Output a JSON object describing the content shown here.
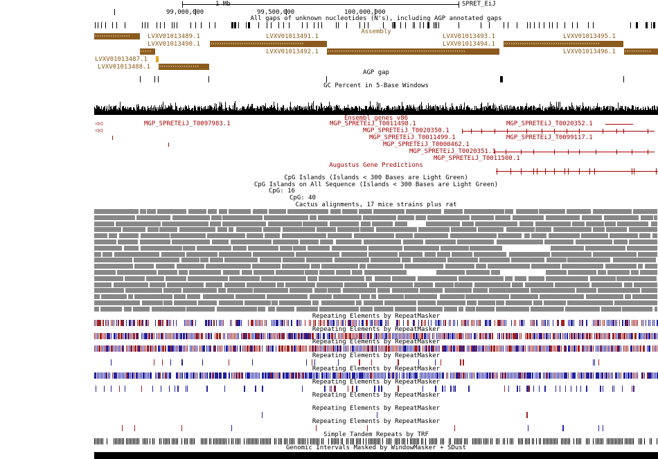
{
  "header": {
    "scale_label": "1 Mb",
    "assembly_name": "SPRET_EiJ",
    "ticks": [
      "99,000,000",
      "99,500,000",
      "100,000,000"
    ]
  },
  "tracks": {
    "gaps": {
      "title": "All gaps of unknown nucleotides (N's), including AGP annotated gaps"
    },
    "assembly": {
      "title": "Assembly",
      "items": [
        "LVXV01013489.1",
        "LVXV01013491.1",
        "LVXV01013493.1",
        "LVXV01013495.1",
        "LVXV01013490.1",
        "LVXV01013494.1",
        "LVXV01013492.1",
        "LVXV01013496.1",
        "LVXV01013487.1",
        "LVXV01013488.1"
      ],
      "color": "#8b5a1e"
    },
    "agp": {
      "title": "AGP gap"
    },
    "gc": {
      "title": "GC Percent in 5-Base Windows"
    },
    "ensembl": {
      "title": "Ensembl genes v86",
      "color": "#a00000",
      "genes": [
        "MGP_SPRETEiJ_T0097983.1",
        "MGP_SPRETEiJ_T0011498.1",
        "MGP_SPRETEiJ_T0020352.1",
        "MGP_SPRETEiJ_T0020350.1",
        "MGP_SPRETEiJ_T0011499.1",
        "MGP_SPRETEiJ_T0099117.1",
        "MGP_SPRETEiJ_T0000462.1",
        "MGP_SPRETEiJ_T0020351.1",
        "MGP_SPRETEiJ_T0011500.1"
      ]
    },
    "augustus": {
      "title": "Augustus Gene Predictions"
    },
    "cpg1": {
      "title": "CpG Islands (Islands < 300 Bases are Light Green)"
    },
    "cpg2": {
      "title": "CpG Islands on All Sequence (Islands < 300 Bases are Light Green)",
      "items": [
        "CpG: 16",
        "CpG: 40"
      ]
    },
    "cactus": {
      "title": "Cactus alignments, 17 mice strains plus rat",
      "color": "#888888"
    },
    "repeats": {
      "title": "Repeating Elements by RepeatMasker",
      "count": 9,
      "colors": [
        "#a02020",
        "#2020a0"
      ]
    },
    "trf": {
      "title": "Simple Tandem Repeats by TRF"
    },
    "wm": {
      "title": "Genomic Intervals Masked by WindowMasker + SDust"
    }
  }
}
